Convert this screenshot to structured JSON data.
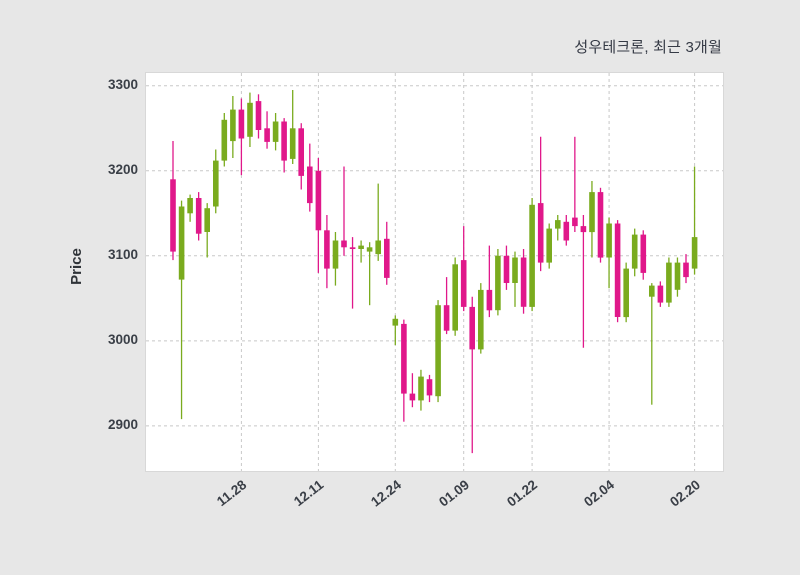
{
  "chart_data": {
    "type": "candlestick",
    "title": "성우테크론, 최근 3개월",
    "ylabel": "Price",
    "yticks": [
      3300,
      3200,
      3100,
      3000,
      2900
    ],
    "ylim": [
      2847,
      3315
    ],
    "grid": "dashed",
    "xticks": [
      {
        "label": "11.28",
        "index": 8
      },
      {
        "label": "12.11",
        "index": 17
      },
      {
        "label": "12.24",
        "index": 26
      },
      {
        "label": "01.09",
        "index": 34
      },
      {
        "label": "01.22",
        "index": 42
      },
      {
        "label": "02.04",
        "index": 51
      },
      {
        "label": "02.20",
        "index": 61
      }
    ],
    "colors": {
      "up": "#7aab1e",
      "down": "#e0188a",
      "background": "#e7e7e7",
      "plot_background": "#ffffff",
      "grid": "#c8c8c8",
      "text": "#3a3f47"
    },
    "candle_format": [
      "open",
      "high",
      "low",
      "close"
    ],
    "candles": [
      [
        3190,
        3235,
        3095,
        3105
      ],
      [
        3072,
        3165,
        2908,
        3158
      ],
      [
        3150,
        3172,
        3140,
        3168
      ],
      [
        3168,
        3175,
        3118,
        3126
      ],
      [
        3128,
        3162,
        3098,
        3156
      ],
      [
        3158,
        3225,
        3150,
        3212
      ],
      [
        3212,
        3268,
        3205,
        3260
      ],
      [
        3235,
        3288,
        3215,
        3272
      ],
      [
        3272,
        3285,
        3195,
        3238
      ],
      [
        3240,
        3292,
        3228,
        3280
      ],
      [
        3282,
        3290,
        3238,
        3248
      ],
      [
        3250,
        3270,
        3226,
        3234
      ],
      [
        3234,
        3268,
        3224,
        3258
      ],
      [
        3258,
        3262,
        3198,
        3212
      ],
      [
        3214,
        3295,
        3208,
        3250
      ],
      [
        3250,
        3256,
        3178,
        3194
      ],
      [
        3205,
        3232,
        3152,
        3162
      ],
      [
        3200,
        3215,
        3080,
        3130
      ],
      [
        3130,
        3148,
        3062,
        3085
      ],
      [
        3085,
        3128,
        3065,
        3118
      ],
      [
        3118,
        3205,
        3100,
        3110
      ],
      [
        3110,
        3122,
        3038,
        3108
      ],
      [
        3108,
        3118,
        3092,
        3112
      ],
      [
        3105,
        3116,
        3042,
        3110
      ],
      [
        3102,
        3185,
        3094,
        3118
      ],
      [
        3120,
        3140,
        3066,
        3074
      ],
      [
        3018,
        3030,
        2995,
        3026
      ],
      [
        3020,
        3025,
        2905,
        2938
      ],
      [
        2938,
        2962,
        2922,
        2930
      ],
      [
        2930,
        2966,
        2918,
        2958
      ],
      [
        2955,
        2960,
        2928,
        2936
      ],
      [
        2935,
        3048,
        2928,
        3042
      ],
      [
        3042,
        3075,
        3008,
        3012
      ],
      [
        3012,
        3098,
        3006,
        3090
      ],
      [
        3095,
        3135,
        3035,
        3040
      ],
      [
        3040,
        3052,
        2868,
        2990
      ],
      [
        2990,
        3068,
        2985,
        3060
      ],
      [
        3060,
        3112,
        3028,
        3036
      ],
      [
        3036,
        3108,
        3030,
        3100
      ],
      [
        3100,
        3112,
        3060,
        3068
      ],
      [
        3068,
        3105,
        3040,
        3098
      ],
      [
        3098,
        3108,
        3032,
        3040
      ],
      [
        3040,
        3168,
        3035,
        3160
      ],
      [
        3162,
        3240,
        3082,
        3092
      ],
      [
        3092,
        3138,
        3085,
        3132
      ],
      [
        3132,
        3148,
        3118,
        3142
      ],
      [
        3140,
        3148,
        3112,
        3118
      ],
      [
        3145,
        3240,
        3128,
        3135
      ],
      [
        3135,
        3148,
        2992,
        3128
      ],
      [
        3128,
        3188,
        3098,
        3175
      ],
      [
        3175,
        3180,
        3092,
        3098
      ],
      [
        3098,
        3145,
        3062,
        3138
      ],
      [
        3138,
        3142,
        3022,
        3028
      ],
      [
        3028,
        3092,
        3022,
        3085
      ],
      [
        3085,
        3132,
        3076,
        3125
      ],
      [
        3125,
        3130,
        3072,
        3080
      ],
      [
        3052,
        3068,
        2925,
        3065
      ],
      [
        3065,
        3070,
        3040,
        3045
      ],
      [
        3045,
        3098,
        3040,
        3092
      ],
      [
        3060,
        3098,
        3052,
        3092
      ],
      [
        3092,
        3102,
        3068,
        3075
      ],
      [
        3085,
        3205,
        3078,
        3122
      ]
    ]
  }
}
